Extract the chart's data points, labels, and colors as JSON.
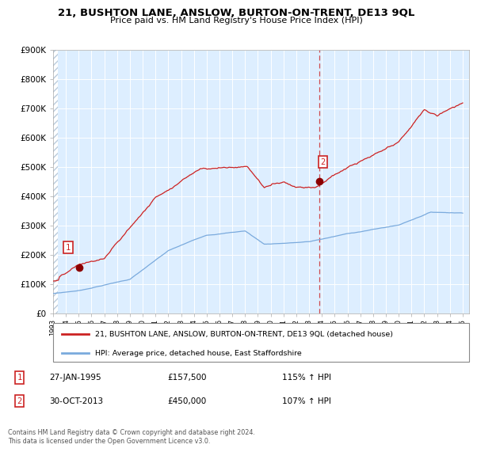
{
  "title": "21, BUSHTON LANE, ANSLOW, BURTON-ON-TRENT, DE13 9QL",
  "subtitle": "Price paid vs. HM Land Registry's House Price Index (HPI)",
  "legend_line1": "21, BUSHTON LANE, ANSLOW, BURTON-ON-TRENT, DE13 9QL (detached house)",
  "legend_line2": "HPI: Average price, detached house, East Staffordshire",
  "transaction1_date": "27-JAN-1995",
  "transaction1_price": "£157,500",
  "transaction1_hpi": "115% ↑ HPI",
  "transaction2_date": "30-OCT-2013",
  "transaction2_price": "£450,000",
  "transaction2_hpi": "107% ↑ HPI",
  "footnote": "Contains HM Land Registry data © Crown copyright and database right 2024.\nThis data is licensed under the Open Government Licence v3.0.",
  "hpi_color": "#7aaadd",
  "price_color": "#cc2222",
  "marker_color": "#8b0000",
  "dashed_line_color": "#cc2222",
  "plot_bg_color": "#ddeeff",
  "fig_bg_color": "#ffffff",
  "grid_color": "#ffffff",
  "box_color": "#cc2222",
  "hatch_color": "#bbccdd",
  "ylim_max": 900000,
  "ylim_min": 0,
  "xmin": 1993.0,
  "xmax": 2025.5,
  "transaction1_year": 1995.07,
  "transaction1_value": 157500,
  "transaction2_year": 2013.83,
  "transaction2_value": 450000
}
